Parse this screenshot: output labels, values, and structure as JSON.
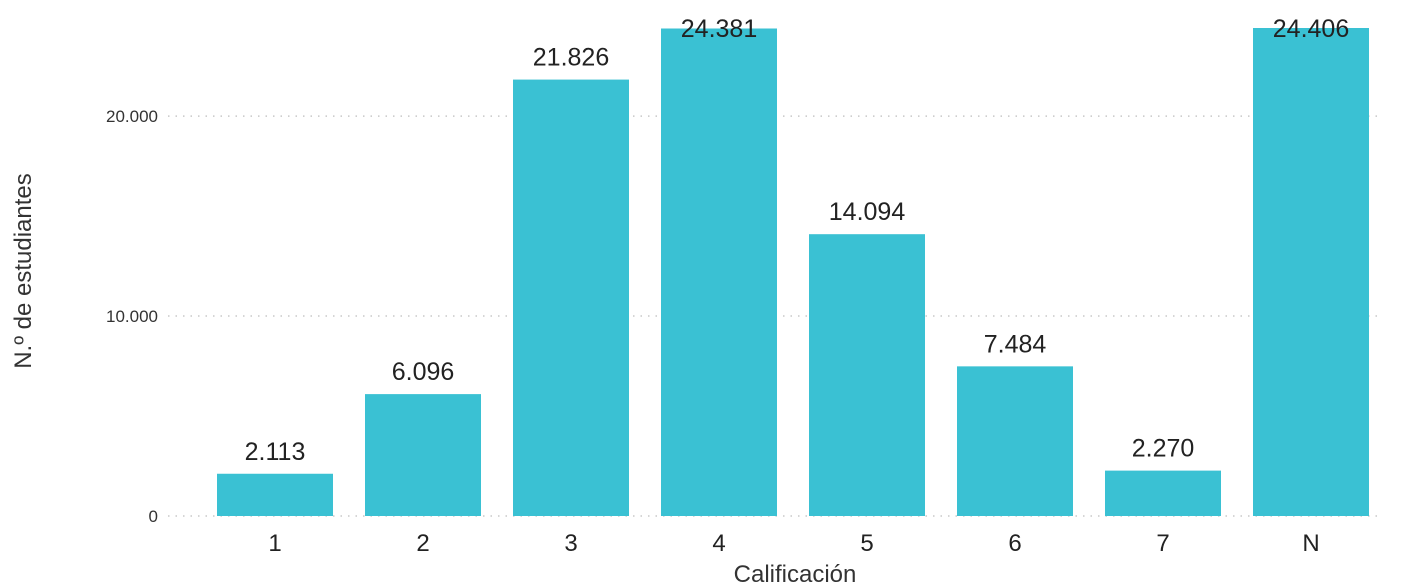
{
  "chart_data": {
    "type": "bar",
    "title": "",
    "xlabel": "Calificación",
    "ylabel": "N.º de estudiantes",
    "categories": [
      "1",
      "2",
      "3",
      "4",
      "5",
      "6",
      "7",
      "N"
    ],
    "values": [
      2113,
      6096,
      21826,
      24381,
      14094,
      7484,
      2270,
      24406
    ],
    "value_labels": [
      "2.113",
      "6.096",
      "21.826",
      "24.381",
      "14.094",
      "7.484",
      "2.270",
      "24.406"
    ],
    "ylim": [
      0,
      24406
    ],
    "yticks": [
      0,
      10000,
      20000
    ],
    "ytick_labels": [
      "0",
      "10.000",
      "20.000"
    ],
    "grid": true,
    "legend": "none",
    "colors": {
      "bar": "#3ac1d3"
    }
  }
}
